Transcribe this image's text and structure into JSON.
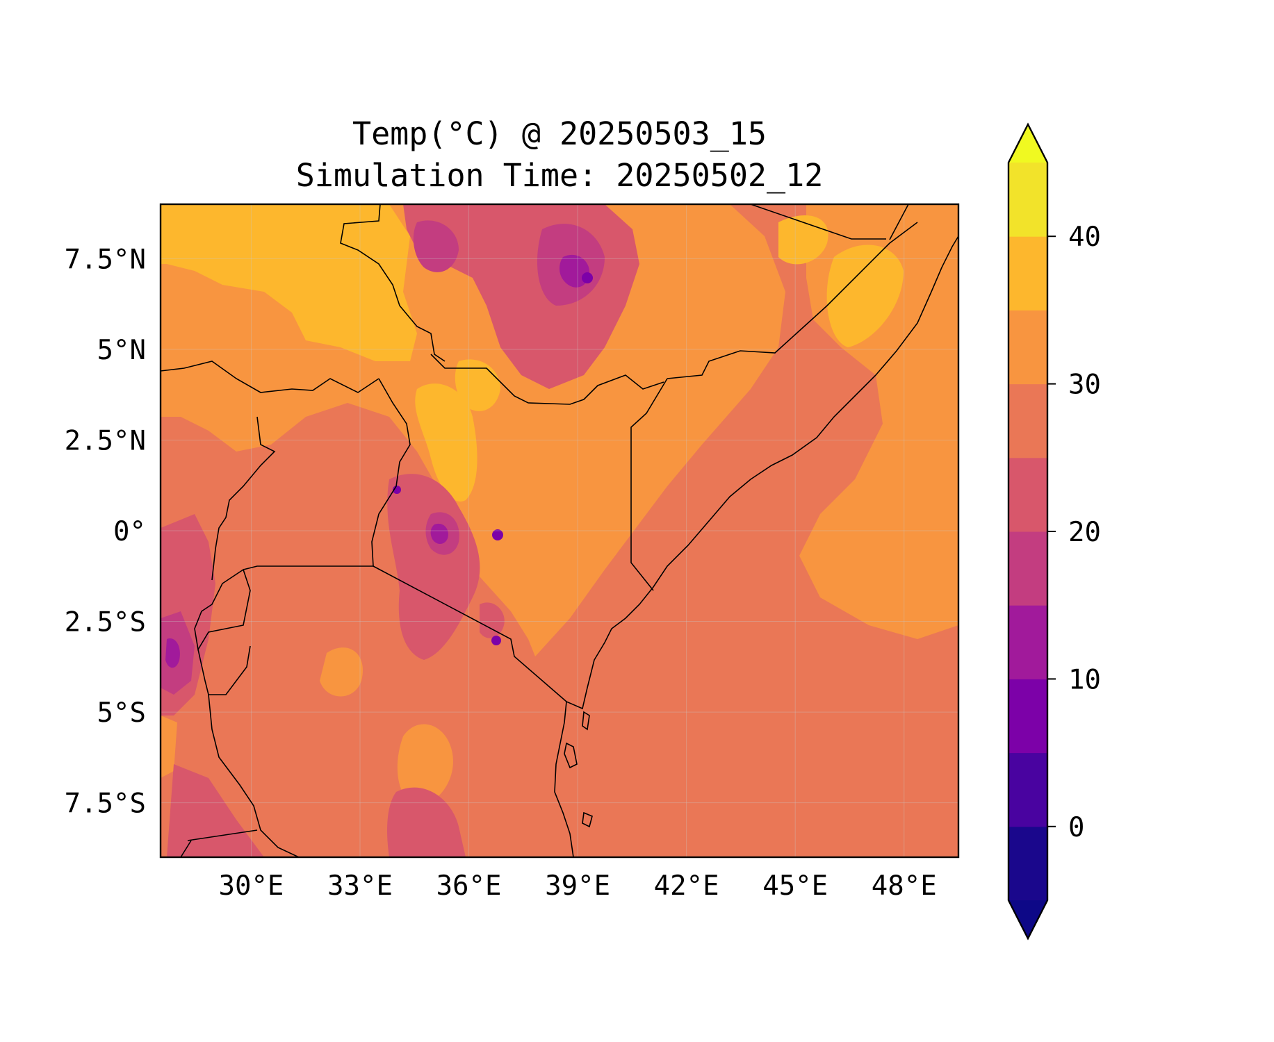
{
  "title": {
    "line1": "Temp(°C) @ 20250503_15",
    "line2": "Simulation Time: 20250502_12"
  },
  "map": {
    "lon_range": [
      27.5,
      49.5
    ],
    "lat_range": [
      -9,
      9
    ],
    "lon_ticks": [
      {
        "value": 30,
        "label": "30°E"
      },
      {
        "value": 33,
        "label": "33°E"
      },
      {
        "value": 36,
        "label": "36°E"
      },
      {
        "value": 39,
        "label": "39°E"
      },
      {
        "value": 42,
        "label": "42°E"
      },
      {
        "value": 45,
        "label": "45°E"
      },
      {
        "value": 48,
        "label": "48°E"
      }
    ],
    "lat_ticks": [
      {
        "value": 7.5,
        "label": "7.5°N"
      },
      {
        "value": 5,
        "label": "5°N"
      },
      {
        "value": 2.5,
        "label": "2.5°N"
      },
      {
        "value": 0,
        "label": "0°"
      },
      {
        "value": -2.5,
        "label": "2.5°S"
      },
      {
        "value": -5,
        "label": "5°S"
      },
      {
        "value": -7.5,
        "label": "7.5°S"
      }
    ]
  },
  "colorbar": {
    "levels": [
      -5,
      0,
      5,
      10,
      15,
      20,
      25,
      30,
      35,
      40,
      45
    ],
    "colors": [
      "#1a078c",
      "#4903a0",
      "#7c01a8",
      "#a11a9b",
      "#c33d80",
      "#d8576b",
      "#ea7756",
      "#f89540",
      "#fdb72d",
      "#f2e32a"
    ],
    "under_color": "#0d0887",
    "over_color": "#f0f921",
    "ticks": [
      {
        "value": 0,
        "label": "0"
      },
      {
        "value": 10,
        "label": "10"
      },
      {
        "value": 20,
        "label": "20"
      },
      {
        "value": 30,
        "label": "30"
      },
      {
        "value": 40,
        "label": "40"
      }
    ]
  },
  "field_colors": {
    "base": "#ea7756",
    "warm": "#f89540",
    "hot": "#fdb72d",
    "cool": "#d8576b",
    "cold": "#c33d80",
    "colder": "#a11a9b",
    "coldest": "#7c01a8"
  }
}
